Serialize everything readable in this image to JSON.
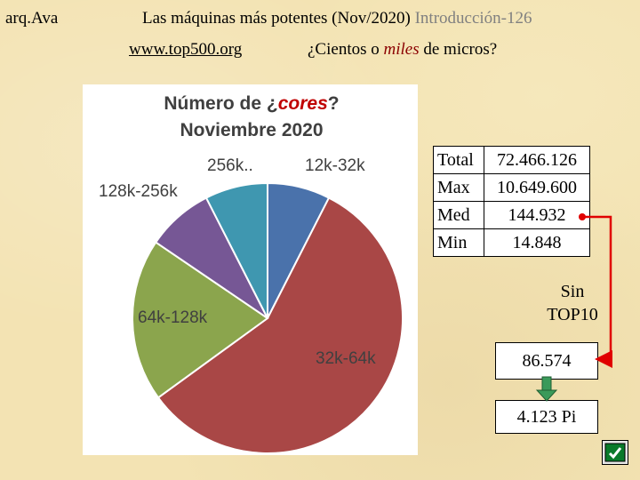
{
  "header": {
    "course": "arq.Ava",
    "title_main": "Las máquinas más potentes (Nov/2020) ",
    "title_section": "Introducción-126",
    "url": "www.top500.org",
    "question_pre": "¿Cientos o ",
    "question_em": "miles",
    "question_post": " de micros?"
  },
  "chart_data": {
    "type": "pie",
    "title_line1": "Número de ¿",
    "title_em": "cores",
    "title_line1_end": "?",
    "title_line2": "Noviembre 2020",
    "slices": [
      {
        "label": "12k-32k",
        "value": 7.5,
        "color": "#4a72ab"
      },
      {
        "label": "32k-64k",
        "value": 57.5,
        "color": "#a94746"
      },
      {
        "label": "64k-128k",
        "value": 19.5,
        "color": "#8ba54d"
      },
      {
        "label": "128k-256k",
        "value": 8.0,
        "color": "#765795"
      },
      {
        "label": "256k..",
        "value": 7.5,
        "color": "#3f97b0"
      }
    ],
    "title_color": "#c00000"
  },
  "stats": {
    "rows": [
      {
        "label": "Total",
        "value": "72.466.126"
      },
      {
        "label": "Max",
        "value": "10.649.600"
      },
      {
        "label": "Med",
        "value": "144.932"
      },
      {
        "label": "Min",
        "value": "14.848"
      }
    ]
  },
  "sin_top10": {
    "line1": "Sin",
    "line2": "TOP10"
  },
  "box1": "86.574",
  "box2": "4.123 Pi",
  "colors": {
    "arrow_red": "#e00000",
    "arrow_green": "#2e8b57",
    "grey_text": "#808080"
  },
  "icons": {
    "nav": "return-arrow-icon"
  }
}
